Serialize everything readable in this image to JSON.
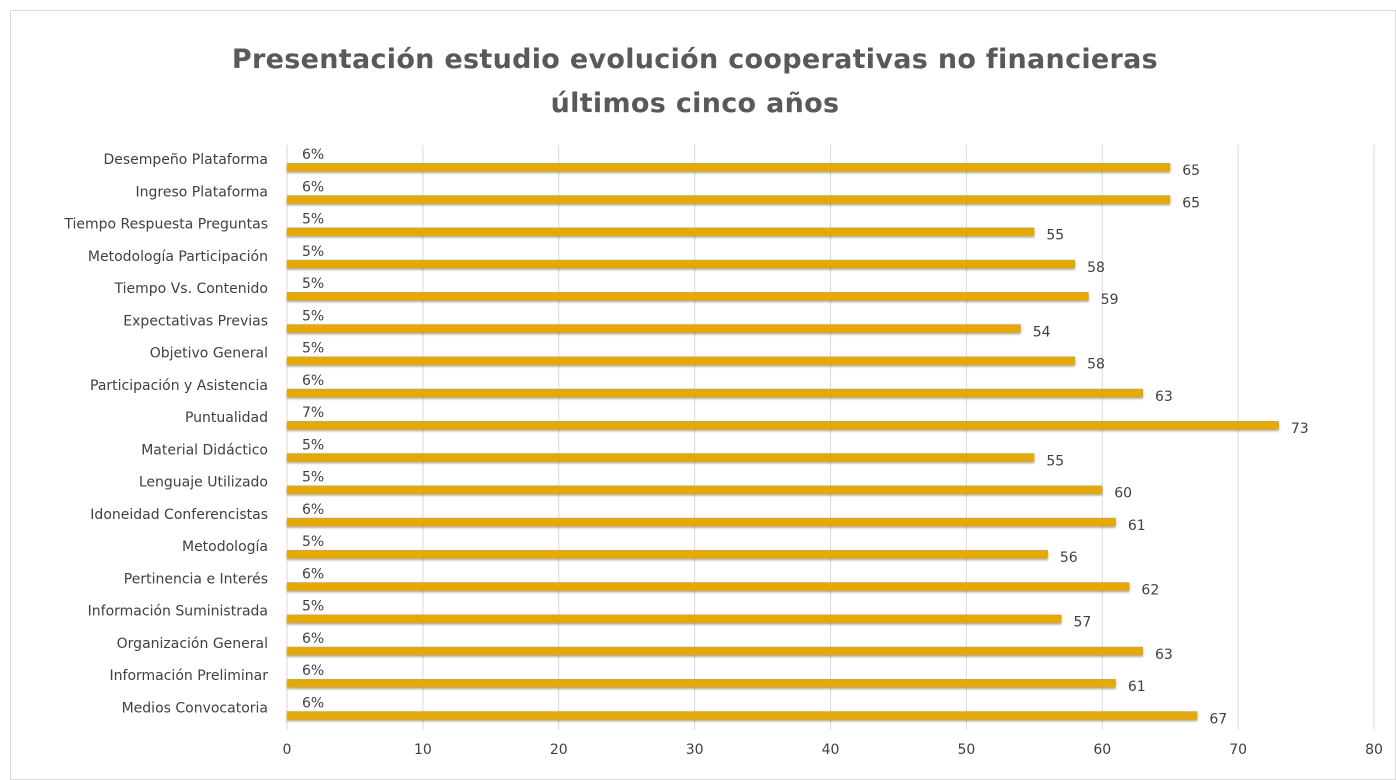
{
  "chart_data": {
    "type": "bar",
    "orientation": "horizontal",
    "title": "Presentación estudio evolución cooperativas no financieras últimos cinco años",
    "categories": [
      "Desempeño Plataforma",
      "Ingreso Plataforma",
      "Tiempo Respuesta Preguntas",
      "Metodología Participación",
      "Tiempo Vs. Contenido",
      "Expectativas Previas",
      "Objetivo General",
      "Participación y Asistencia",
      "Puntualidad",
      "Material Didáctico",
      "Lenguaje Utilizado",
      "Idoneidad Conferencistas",
      "Metodología",
      "Pertinencia e Interés",
      "Información Suministrada",
      "Organización General",
      "Información Preliminar",
      "Medios Convocatoria"
    ],
    "series": [
      {
        "color": "#e8a800",
        "values": [
          65,
          65,
          55,
          58,
          59,
          54,
          58,
          63,
          73,
          55,
          60,
          61,
          56,
          62,
          57,
          63,
          61,
          67
        ]
      },
      {
        "color": "#e8a800",
        "values": [
          0.06,
          0.06,
          0.05,
          0.05,
          0.05,
          0.05,
          0.05,
          0.06,
          0.07,
          0.05,
          0.05,
          0.06,
          0.05,
          0.06,
          0.05,
          0.06,
          0.06,
          0.06
        ],
        "value_labels": [
          "6%",
          "6%",
          "5%",
          "5%",
          "5%",
          "5%",
          "5%",
          "6%",
          "7%",
          "5%",
          "5%",
          "6%",
          "5%",
          "6%",
          "5%",
          "6%",
          "6%",
          "6%"
        ]
      }
    ],
    "xlim": [
      0,
      80
    ],
    "xticks": [
      0,
      10,
      20,
      30,
      40,
      50,
      60,
      70,
      80
    ],
    "grid": true
  }
}
